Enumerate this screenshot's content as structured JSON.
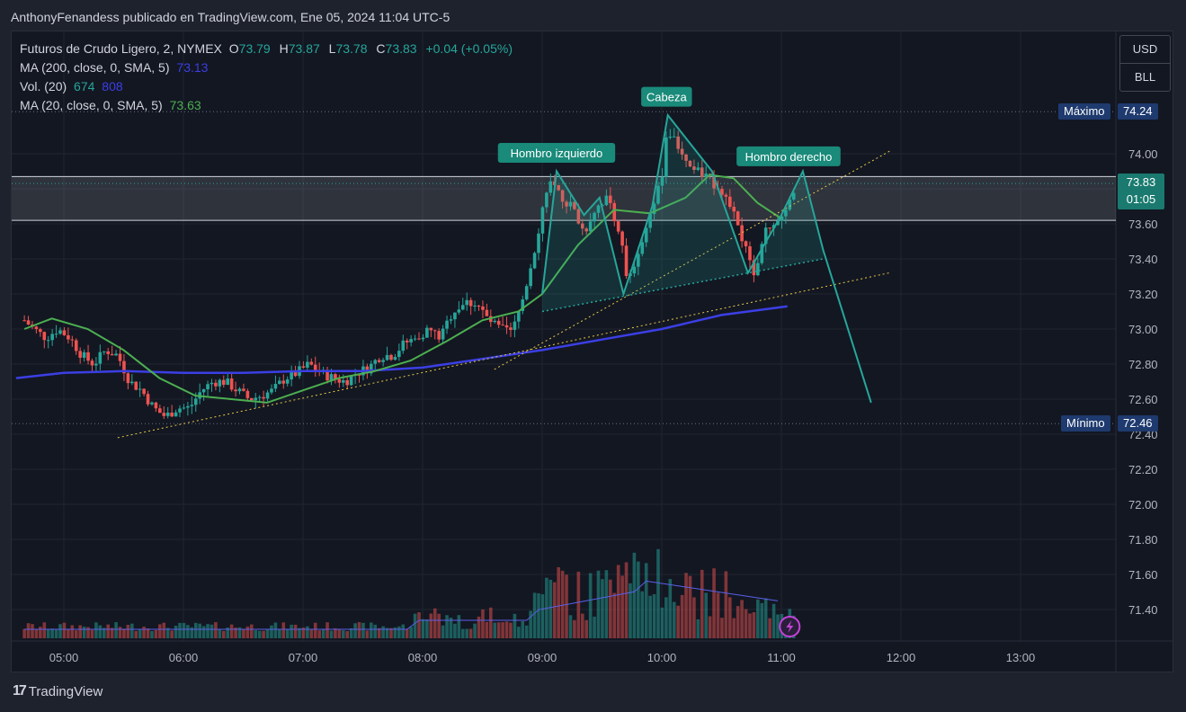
{
  "header": {
    "text": "AnthonyFenandess publicado en TradingView.com, Ene 05, 2024 11:04 UTC-5"
  },
  "legend": {
    "symbol": "Futuros de Crudo Ligero, 2, NYMEX",
    "ohlc": {
      "o_label": "O",
      "o": "73.79",
      "h_label": "H",
      "h": "73.87",
      "l_label": "L",
      "l": "73.78",
      "c_label": "C",
      "c": "73.83",
      "change": "+0.04 (+0.05%)"
    },
    "ma200": {
      "label": "MA (200, close, 0, SMA, 5)",
      "value": "73.13"
    },
    "vol": {
      "label": "Vol. (20)",
      "value1": "674",
      "value2": "808"
    },
    "ma20": {
      "label": "MA (20, close, 0, SMA, 5)",
      "value": "73.63"
    }
  },
  "currency": {
    "line1": "USD",
    "line2": "BLL"
  },
  "annotations": {
    "head": "Cabeza",
    "left_shoulder": "Hombro izquierdo",
    "right_shoulder": "Hombro derecho"
  },
  "price_tags": {
    "max_label": "Máximo",
    "max_value": "74.24",
    "min_label": "Mínimo",
    "min_value": "72.46",
    "last_price": "73.83",
    "countdown": "01:05"
  },
  "footer": {
    "brand": "TradingView",
    "mark": "17"
  },
  "colors": {
    "up": "#26a69a",
    "down": "#ef5350",
    "ma200": "#3b3fe4",
    "ma20": "#4caf50",
    "pattern": "#26a69a",
    "trend": "#e6c84a"
  },
  "chart_data": {
    "type": "candlestick",
    "y_ticks": [
      "74.00",
      "73.80",
      "73.60",
      "73.40",
      "73.20",
      "73.00",
      "72.80",
      "72.60",
      "72.40",
      "72.20",
      "72.00",
      "71.80",
      "71.60",
      "71.40"
    ],
    "x_ticks": [
      "05:00",
      "06:00",
      "07:00",
      "08:00",
      "09:00",
      "10:00",
      "11:00",
      "12:00",
      "13:00"
    ],
    "ylim": [
      71.25,
      74.4
    ],
    "x_hours": [
      4.6,
      13.6
    ],
    "series_price_path": [
      [
        4.67,
        73.05
      ],
      [
        4.75,
        73.0
      ],
      [
        4.85,
        72.95
      ],
      [
        4.95,
        73.0
      ],
      [
        5.05,
        72.95
      ],
      [
        5.15,
        72.85
      ],
      [
        5.25,
        72.8
      ],
      [
        5.35,
        72.88
      ],
      [
        5.45,
        72.85
      ],
      [
        5.55,
        72.7
      ],
      [
        5.65,
        72.65
      ],
      [
        5.75,
        72.55
      ],
      [
        5.85,
        72.5
      ],
      [
        5.95,
        72.55
      ],
      [
        6.05,
        72.55
      ],
      [
        6.15,
        72.65
      ],
      [
        6.25,
        72.7
      ],
      [
        6.35,
        72.7
      ],
      [
        6.45,
        72.65
      ],
      [
        6.55,
        72.6
      ],
      [
        6.65,
        72.62
      ],
      [
        6.75,
        72.65
      ],
      [
        6.85,
        72.72
      ],
      [
        6.95,
        72.75
      ],
      [
        7.05,
        72.8
      ],
      [
        7.15,
        72.75
      ],
      [
        7.25,
        72.72
      ],
      [
        7.35,
        72.7
      ],
      [
        7.45,
        72.75
      ],
      [
        7.55,
        72.78
      ],
      [
        7.65,
        72.85
      ],
      [
        7.75,
        72.85
      ],
      [
        7.85,
        72.92
      ],
      [
        7.95,
        72.95
      ],
      [
        8.05,
        73.0
      ],
      [
        8.15,
        72.95
      ],
      [
        8.25,
        73.1
      ],
      [
        8.35,
        73.15
      ],
      [
        8.45,
        73.15
      ],
      [
        8.55,
        73.05
      ],
      [
        8.65,
        73.0
      ],
      [
        8.75,
        72.98
      ],
      [
        8.85,
        73.2
      ],
      [
        8.95,
        73.5
      ],
      [
        9.05,
        73.85
      ],
      [
        9.15,
        73.75
      ],
      [
        9.25,
        73.7
      ],
      [
        9.35,
        73.55
      ],
      [
        9.45,
        73.7
      ],
      [
        9.55,
        73.75
      ],
      [
        9.65,
        73.55
      ],
      [
        9.72,
        73.25
      ],
      [
        9.8,
        73.45
      ],
      [
        9.9,
        73.65
      ],
      [
        10.0,
        73.85
      ],
      [
        10.05,
        74.15
      ],
      [
        10.12,
        74.05
      ],
      [
        10.2,
        73.95
      ],
      [
        10.3,
        73.9
      ],
      [
        10.4,
        73.85
      ],
      [
        10.5,
        73.8
      ],
      [
        10.6,
        73.65
      ],
      [
        10.7,
        73.45
      ],
      [
        10.78,
        73.32
      ],
      [
        10.85,
        73.55
      ],
      [
        10.95,
        73.6
      ],
      [
        11.0,
        73.62
      ],
      [
        11.05,
        73.7
      ],
      [
        11.1,
        73.8
      ],
      [
        11.15,
        73.83
      ]
    ],
    "ma20_path": [
      [
        4.67,
        73.0
      ],
      [
        4.9,
        73.06
      ],
      [
        5.2,
        73.0
      ],
      [
        5.5,
        72.88
      ],
      [
        5.8,
        72.72
      ],
      [
        6.1,
        72.62
      ],
      [
        6.4,
        72.6
      ],
      [
        6.7,
        72.58
      ],
      [
        7.0,
        72.65
      ],
      [
        7.3,
        72.72
      ],
      [
        7.6,
        72.76
      ],
      [
        7.9,
        72.82
      ],
      [
        8.2,
        72.93
      ],
      [
        8.5,
        73.05
      ],
      [
        8.8,
        73.1
      ],
      [
        9.0,
        73.2
      ],
      [
        9.3,
        73.48
      ],
      [
        9.6,
        73.68
      ],
      [
        9.9,
        73.66
      ],
      [
        10.2,
        73.75
      ],
      [
        10.4,
        73.88
      ],
      [
        10.6,
        73.86
      ],
      [
        10.8,
        73.72
      ],
      [
        11.0,
        73.63
      ]
    ],
    "ma200_path": [
      [
        4.6,
        72.72
      ],
      [
        5.0,
        72.75
      ],
      [
        5.5,
        72.76
      ],
      [
        6.0,
        72.75
      ],
      [
        6.5,
        72.75
      ],
      [
        7.0,
        72.76
      ],
      [
        7.5,
        72.76
      ],
      [
        8.0,
        72.78
      ],
      [
        8.5,
        72.83
      ],
      [
        9.0,
        72.88
      ],
      [
        9.5,
        72.94
      ],
      [
        10.0,
        73.0
      ],
      [
        10.5,
        73.08
      ],
      [
        11.05,
        73.13
      ]
    ],
    "pattern_outline": [
      [
        9.0,
        73.2
      ],
      [
        9.12,
        73.9
      ],
      [
        9.35,
        73.65
      ],
      [
        9.48,
        73.75
      ],
      [
        9.68,
        73.2
      ],
      [
        9.92,
        73.7
      ],
      [
        10.05,
        74.22
      ],
      [
        10.42,
        73.9
      ],
      [
        10.72,
        73.32
      ],
      [
        11.0,
        73.65
      ],
      [
        11.18,
        73.9
      ],
      [
        11.35,
        73.45
      ],
      [
        11.75,
        72.58
      ]
    ],
    "neckline": [
      [
        9.0,
        73.1
      ],
      [
        11.35,
        73.4
      ]
    ],
    "trendlines": [
      [
        [
          5.45,
          72.38
        ],
        [
          11.9,
          73.32
        ]
      ],
      [
        [
          8.6,
          72.77
        ],
        [
          11.92,
          74.02
        ]
      ]
    ],
    "zone": [
      73.62,
      73.87
    ],
    "volume_estimates": [
      40,
      60,
      90,
      120,
      200,
      260,
      380,
      460,
      700,
      1000,
      800,
      600,
      650,
      700,
      808
    ]
  }
}
